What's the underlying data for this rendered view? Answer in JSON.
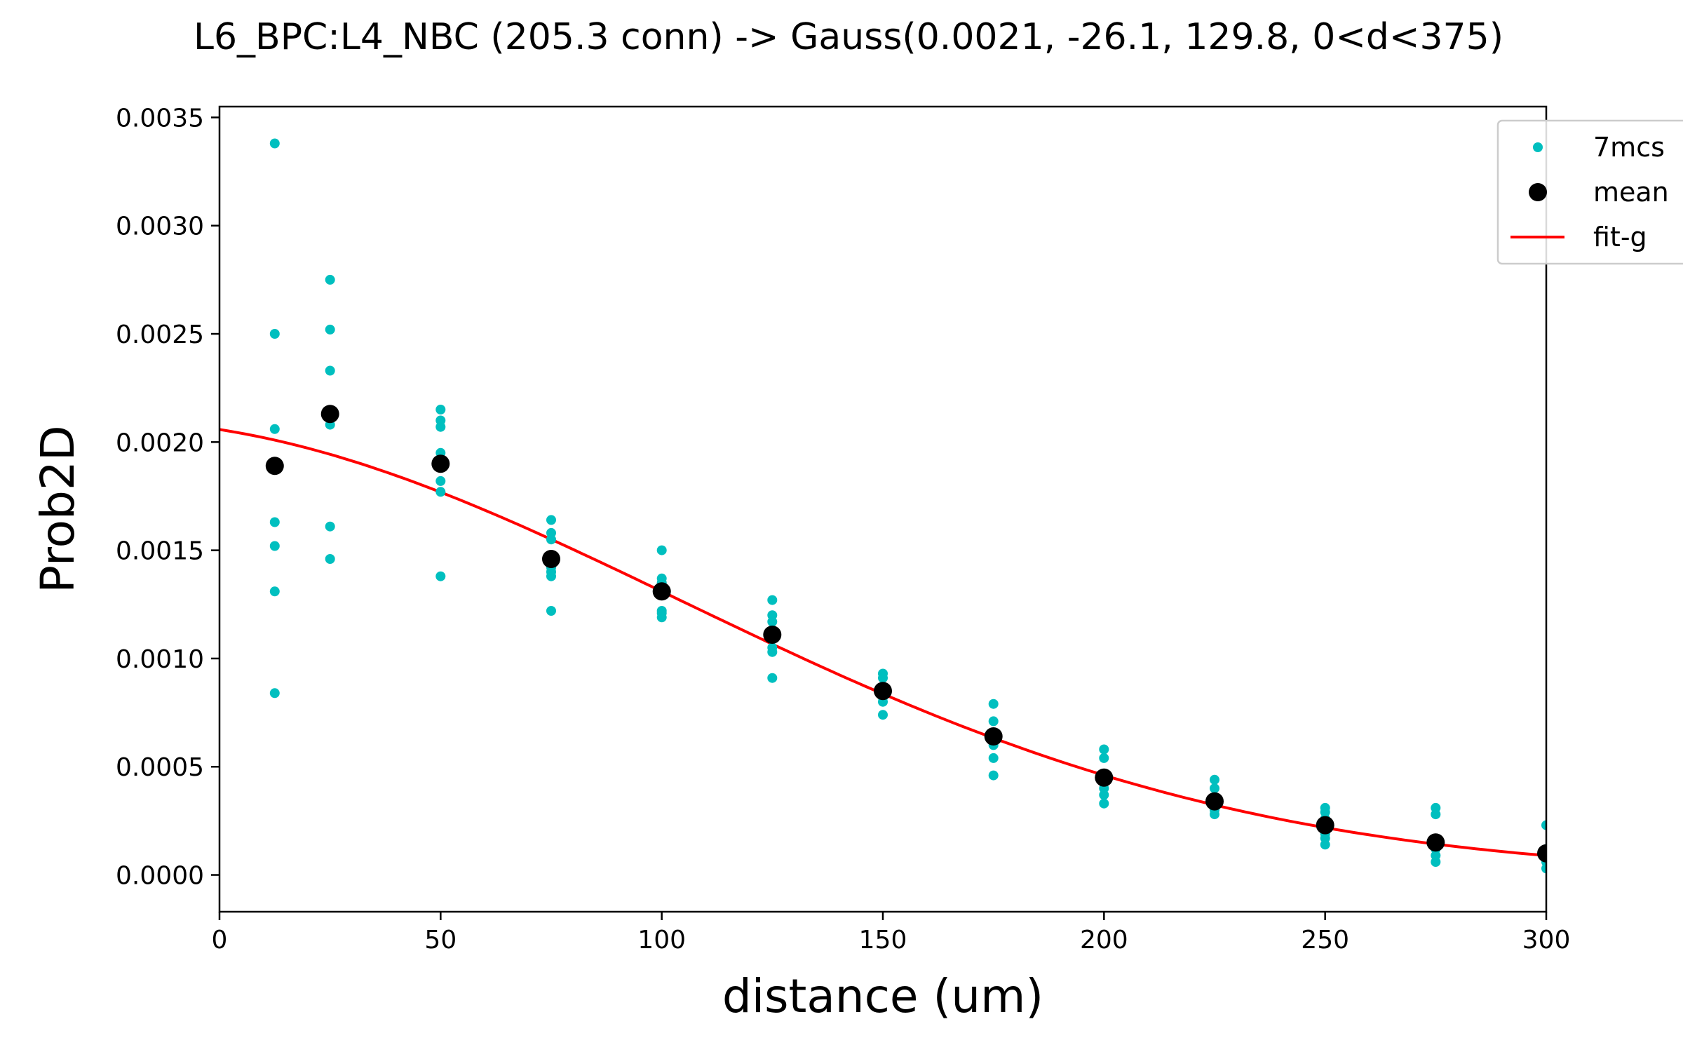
{
  "chart_data": {
    "type": "scatter",
    "title": "L6_BPC:L4_NBC (205.3 conn) -> Gauss(0.0021, -26.1, 129.8, 0<d<375)",
    "xlabel": "distance (um)",
    "ylabel": "Prob2D",
    "xlim": [
      0,
      300
    ],
    "ylim": [
      -0.00017,
      0.00355
    ],
    "x_ticks": [
      0,
      50,
      100,
      150,
      200,
      250,
      300
    ],
    "x_tick_labels": [
      "0",
      "50",
      "100",
      "150",
      "200",
      "250",
      "300"
    ],
    "y_ticks": [
      0,
      0.0005,
      0.001,
      0.0015,
      0.002,
      0.0025,
      0.003,
      0.0035
    ],
    "y_tick_labels": [
      "0.0000",
      "0.0005",
      "0.0010",
      "0.0015",
      "0.0020",
      "0.0025",
      "0.0030",
      "0.0035"
    ],
    "grid": false,
    "legend_position": "top-right",
    "series": [
      {
        "name": "7mcs",
        "kind": "points",
        "color": "#00bfbf",
        "points": [
          [
            12.5,
            0.00338
          ],
          [
            12.5,
            0.0025
          ],
          [
            12.5,
            0.00206
          ],
          [
            12.5,
            0.00163
          ],
          [
            12.5,
            0.00152
          ],
          [
            12.5,
            0.00131
          ],
          [
            12.5,
            0.00084
          ],
          [
            25,
            0.00275
          ],
          [
            25,
            0.00252
          ],
          [
            25,
            0.00233
          ],
          [
            25,
            0.00208
          ],
          [
            25,
            0.00161
          ],
          [
            25,
            0.00146
          ],
          [
            50,
            0.00215
          ],
          [
            50,
            0.0021
          ],
          [
            50,
            0.00207
          ],
          [
            50,
            0.00195
          ],
          [
            50,
            0.00182
          ],
          [
            50,
            0.00177
          ],
          [
            50,
            0.00138
          ],
          [
            75,
            0.00164
          ],
          [
            75,
            0.00158
          ],
          [
            75,
            0.00155
          ],
          [
            75,
            0.00142
          ],
          [
            75,
            0.0014
          ],
          [
            75,
            0.00138
          ],
          [
            75,
            0.00122
          ],
          [
            100,
            0.0015
          ],
          [
            100,
            0.00137
          ],
          [
            100,
            0.00135
          ],
          [
            100,
            0.00131
          ],
          [
            100,
            0.00122
          ],
          [
            100,
            0.00121
          ],
          [
            100,
            0.00119
          ],
          [
            125,
            0.00127
          ],
          [
            125,
            0.0012
          ],
          [
            125,
            0.00117
          ],
          [
            125,
            0.00109
          ],
          [
            125,
            0.00105
          ],
          [
            125,
            0.00103
          ],
          [
            125,
            0.00091
          ],
          [
            150,
            0.00093
          ],
          [
            150,
            0.00091
          ],
          [
            150,
            0.00085
          ],
          [
            150,
            0.00082
          ],
          [
            150,
            0.0008
          ],
          [
            150,
            0.00074
          ],
          [
            175,
            0.00079
          ],
          [
            175,
            0.00071
          ],
          [
            175,
            0.00065
          ],
          [
            175,
            0.0006
          ],
          [
            175,
            0.00054
          ],
          [
            175,
            0.00046
          ],
          [
            200,
            0.00058
          ],
          [
            200,
            0.00054
          ],
          [
            200,
            0.00045
          ],
          [
            200,
            0.0004
          ],
          [
            200,
            0.00037
          ],
          [
            200,
            0.00033
          ],
          [
            225,
            0.00044
          ],
          [
            225,
            0.0004
          ],
          [
            225,
            0.00036
          ],
          [
            225,
            0.00033
          ],
          [
            225,
            0.0003
          ],
          [
            225,
            0.00028
          ],
          [
            250,
            0.00031
          ],
          [
            250,
            0.00029
          ],
          [
            250,
            0.00026
          ],
          [
            250,
            0.00022
          ],
          [
            250,
            0.00019
          ],
          [
            250,
            0.00017
          ],
          [
            250,
            0.00014
          ],
          [
            275,
            0.00031
          ],
          [
            275,
            0.00028
          ],
          [
            275,
            0.00016
          ],
          [
            275,
            0.00012
          ],
          [
            275,
            9e-05
          ],
          [
            275,
            6e-05
          ],
          [
            300,
            0.00023
          ],
          [
            300,
            0.00012
          ],
          [
            300,
            8e-05
          ],
          [
            300,
            6e-05
          ],
          [
            300,
            3e-05
          ]
        ]
      },
      {
        "name": "mean",
        "kind": "points",
        "color": "#000000",
        "points": [
          [
            12.5,
            0.00189
          ],
          [
            25,
            0.00213
          ],
          [
            50,
            0.0019
          ],
          [
            75,
            0.00146
          ],
          [
            100,
            0.00131
          ],
          [
            125,
            0.00111
          ],
          [
            150,
            0.00085
          ],
          [
            175,
            0.00064
          ],
          [
            200,
            0.00045
          ],
          [
            225,
            0.00034
          ],
          [
            250,
            0.00023
          ],
          [
            275,
            0.00015
          ],
          [
            300,
            0.0001
          ]
        ]
      },
      {
        "name": "fit-g",
        "kind": "line",
        "color": "#ff0000",
        "function": "gauss",
        "params": {
          "amplitude": 0.0021,
          "mu": -26.1,
          "sigma": 129.8
        }
      }
    ]
  }
}
